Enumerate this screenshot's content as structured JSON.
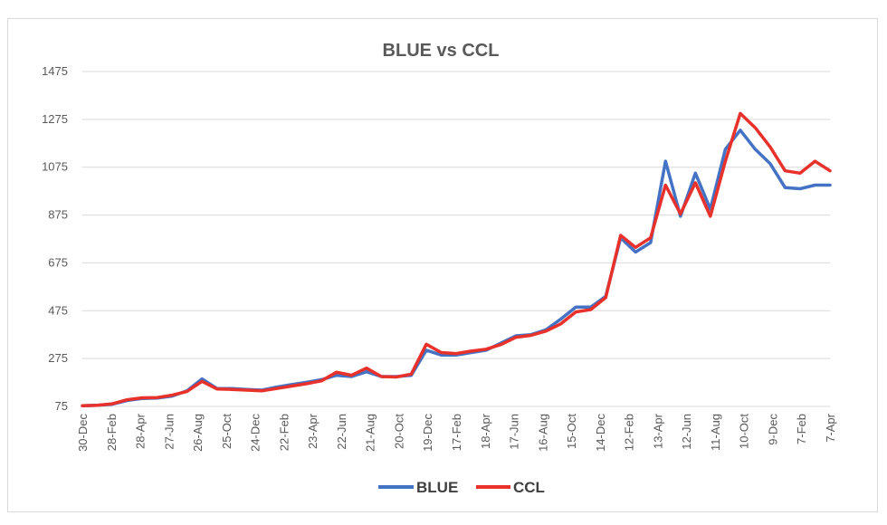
{
  "chart_data": {
    "type": "line",
    "title": "BLUE vs CCL",
    "xlabel": "",
    "ylabel": "",
    "ylim": [
      75,
      1475
    ],
    "yticks": [
      75,
      275,
      475,
      675,
      875,
      1075,
      1275,
      1475
    ],
    "x_tick_labels": [
      "30-Dec",
      "28-Feb",
      "28-Apr",
      "27-Jun",
      "26-Aug",
      "25-Oct",
      "24-Dec",
      "22-Feb",
      "23-Apr",
      "22-Jun",
      "21-Aug",
      "20-Oct",
      "19-Dec",
      "17-Feb",
      "18-Apr",
      "17-Jun",
      "16-Aug",
      "15-Oct",
      "14-Dec",
      "12-Feb",
      "13-Apr",
      "12-Jun",
      "11-Aug",
      "10-Oct",
      "9-Dec",
      "7-Feb",
      "7-Apr"
    ],
    "grid": true,
    "legend_position": "bottom",
    "series": [
      {
        "name": "BLUE",
        "color": "#4472C4",
        "values": [
          78,
          80,
          84,
          100,
          108,
          110,
          118,
          140,
          190,
          150,
          150,
          146,
          143,
          156,
          166,
          176,
          187,
          205,
          200,
          220,
          200,
          200,
          205,
          310,
          290,
          290,
          300,
          310,
          340,
          370,
          375,
          395,
          440,
          490,
          490,
          535,
          780,
          720,
          760,
          1100,
          870,
          1050,
          900,
          1150,
          1230,
          1150,
          1090,
          990,
          985,
          1000,
          1000
        ]
      },
      {
        "name": "CCL",
        "color": "#E8312A",
        "values": [
          78,
          80,
          86,
          103,
          111,
          112,
          122,
          138,
          180,
          148,
          146,
          143,
          140,
          150,
          160,
          170,
          182,
          218,
          205,
          235,
          200,
          198,
          210,
          335,
          300,
          296,
          306,
          314,
          334,
          364,
          372,
          390,
          420,
          470,
          480,
          530,
          790,
          740,
          780,
          1000,
          880,
          1010,
          870,
          1100,
          1300,
          1240,
          1160,
          1060,
          1050,
          1100,
          1060
        ]
      }
    ]
  }
}
